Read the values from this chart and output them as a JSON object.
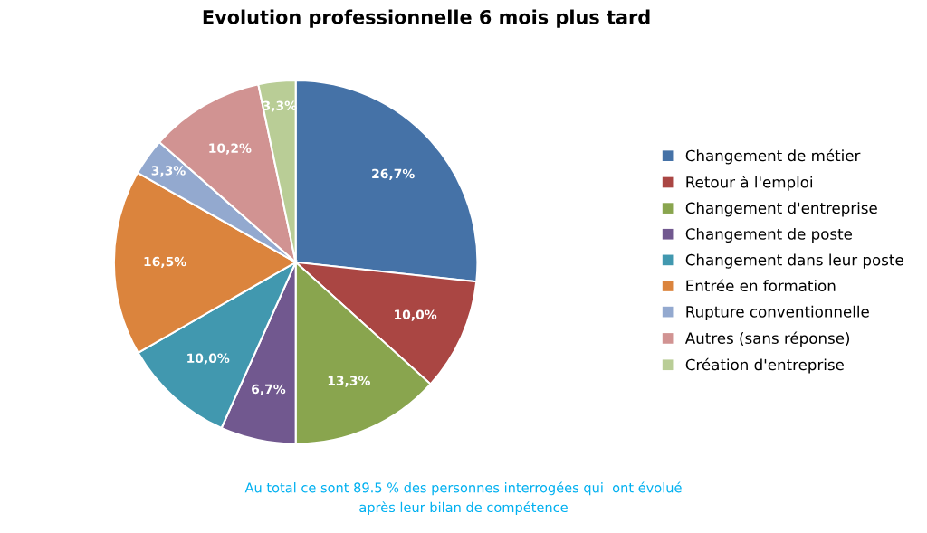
{
  "chart_data": {
    "type": "pie",
    "title": "Evolution professionnelle 6 mois plus tard",
    "categories": [
      "Changement de métier",
      "Retour à l'emploi",
      "Changement d'entreprise",
      "Changement de poste",
      "Changement dans leur poste",
      "Entrée en formation",
      "Rupture conventionnelle",
      "Autres (sans réponse)",
      "Création d'entreprise"
    ],
    "values": [
      26.7,
      10.0,
      13.3,
      6.7,
      10.0,
      16.5,
      3.3,
      10.2,
      3.3
    ],
    "colors": [
      "#4572a7",
      "#aa4643",
      "#89a54e",
      "#71588f",
      "#4198af",
      "#db843d",
      "#93a9cf",
      "#d19392",
      "#b9cd96"
    ],
    "value_labels": [
      "26,7%",
      "10,0%",
      "13,3%",
      "6,7%",
      "10,0%",
      "16,5%",
      "3,3%",
      "10,2%",
      "3,3%"
    ],
    "legend": "right",
    "annotations": [
      "Au total ce sont 89.5 % des personnes interrogées qui  ont évolué\naprès leur bilan de compétence"
    ]
  }
}
